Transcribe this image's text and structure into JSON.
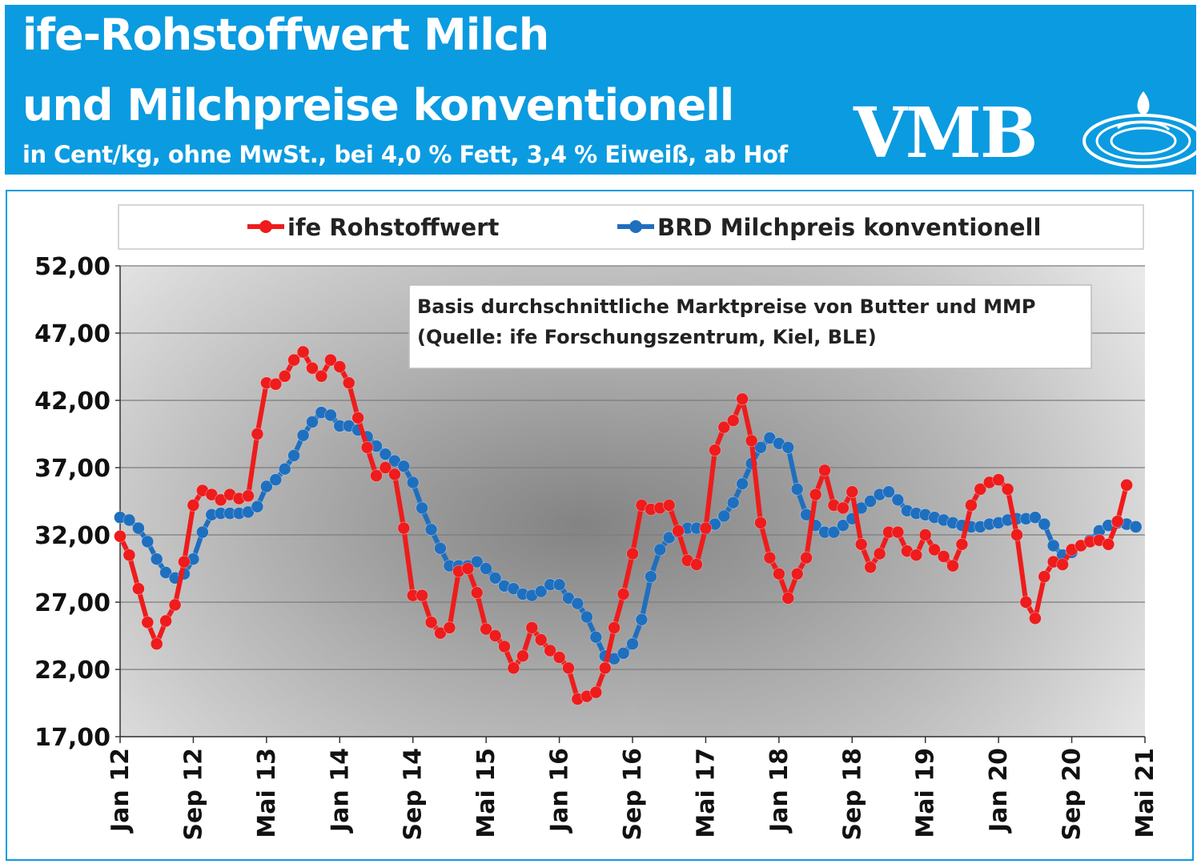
{
  "header": {
    "title_line1": "ife-Rohstoffwert Milch",
    "title_line2": "und Milchpreise konventionell",
    "subtitle": "in Cent/kg, ohne MwSt., bei 4,0 % Fett, 3,4 % Eiweiß, ab Hof",
    "logo_text": "VMB",
    "background_color": "#0b9be0"
  },
  "annotation": {
    "line1": "Basis durchschnittliche Marktpreise von Butter und MMP",
    "line2": "(Quelle: ife Forschungszentrum, Kiel, BLE)"
  },
  "chart_data": {
    "type": "line",
    "title": "",
    "xlabel": "",
    "ylabel": "",
    "ylim": [
      17,
      52
    ],
    "y_ticks": [
      "17,00",
      "22,00",
      "27,00",
      "32,00",
      "37,00",
      "42,00",
      "47,00",
      "52,00"
    ],
    "y_tick_values": [
      17,
      22,
      27,
      32,
      37,
      42,
      47,
      52
    ],
    "x_start": "2012-01",
    "x_ticks": [
      "Jan 12",
      "Sep 12",
      "Mai 13",
      "Jan 14",
      "Sep 14",
      "Mai 15",
      "Jan 16",
      "Sep 16",
      "Mai 17",
      "Jan 18",
      "Sep 18",
      "Mai 19",
      "Jan 20",
      "Sep 20",
      "Mai 21"
    ],
    "grid": "horizontal",
    "legend_position": "top",
    "series": [
      {
        "name": "ife Rohstoffwert",
        "color": "#ee1c1c",
        "values": [
          31.9,
          30.5,
          28.0,
          25.5,
          23.9,
          25.6,
          26.8,
          30.0,
          34.2,
          35.3,
          35.0,
          34.6,
          35.0,
          34.7,
          34.9,
          39.5,
          43.3,
          43.2,
          43.8,
          45.0,
          45.6,
          44.4,
          43.8,
          45.0,
          44.5,
          43.3,
          40.7,
          38.5,
          36.4,
          37.0,
          36.5,
          32.5,
          27.5,
          27.5,
          25.5,
          24.7,
          25.1,
          29.3,
          29.5,
          27.7,
          25.0,
          24.5,
          23.7,
          22.1,
          23.0,
          25.1,
          24.2,
          23.4,
          22.9,
          22.1,
          19.8,
          20.0,
          20.3,
          22.1,
          25.1,
          27.6,
          30.6,
          34.2,
          33.9,
          34.0,
          34.2,
          32.3,
          30.1,
          29.8,
          32.5,
          38.3,
          40.0,
          40.5,
          42.1,
          39.0,
          32.9,
          30.3,
          29.1,
          27.3,
          29.1,
          30.3,
          35.0,
          36.8,
          34.2,
          34.0,
          35.2,
          31.3,
          29.6,
          30.6,
          32.2,
          32.2,
          30.8,
          30.5,
          32.0,
          30.9,
          30.4,
          29.7,
          31.3,
          34.2,
          35.4,
          35.9,
          36.1,
          35.4,
          32.0,
          27.0,
          25.8,
          28.9,
          30.0,
          29.8,
          30.9,
          31.2,
          31.5,
          31.6,
          31.3,
          33.0,
          35.7
        ]
      },
      {
        "name": "BRD Milchpreis konventionell",
        "color": "#1f6fbf",
        "values": [
          33.3,
          33.1,
          32.5,
          31.5,
          30.2,
          29.2,
          28.8,
          29.1,
          30.2,
          32.2,
          33.5,
          33.6,
          33.6,
          33.6,
          33.7,
          34.1,
          35.6,
          36.1,
          36.9,
          37.9,
          39.4,
          40.4,
          41.1,
          40.9,
          40.1,
          40.1,
          39.8,
          39.3,
          38.6,
          38.0,
          37.5,
          37.1,
          35.9,
          34.0,
          32.4,
          31.0,
          29.7,
          29.7,
          29.7,
          30.0,
          29.5,
          28.8,
          28.2,
          28.0,
          27.6,
          27.5,
          27.8,
          28.3,
          28.3,
          27.3,
          26.9,
          25.9,
          24.4,
          23.0,
          22.8,
          23.2,
          23.9,
          25.7,
          28.9,
          30.9,
          31.8,
          32.2,
          32.5,
          32.5,
          32.4,
          32.8,
          33.4,
          34.4,
          35.8,
          37.3,
          38.5,
          39.2,
          38.8,
          38.5,
          35.4,
          33.5,
          32.7,
          32.2,
          32.2,
          32.7,
          33.2,
          34.0,
          34.5,
          35.0,
          35.2,
          34.6,
          33.8,
          33.6,
          33.5,
          33.3,
          33.1,
          32.9,
          32.7,
          32.6,
          32.6,
          32.8,
          32.9,
          33.1,
          33.2,
          33.2,
          33.3,
          32.8,
          31.2,
          30.5,
          30.7,
          31.2,
          31.6,
          32.3,
          32.7,
          32.9,
          32.8,
          32.6
        ]
      }
    ]
  }
}
